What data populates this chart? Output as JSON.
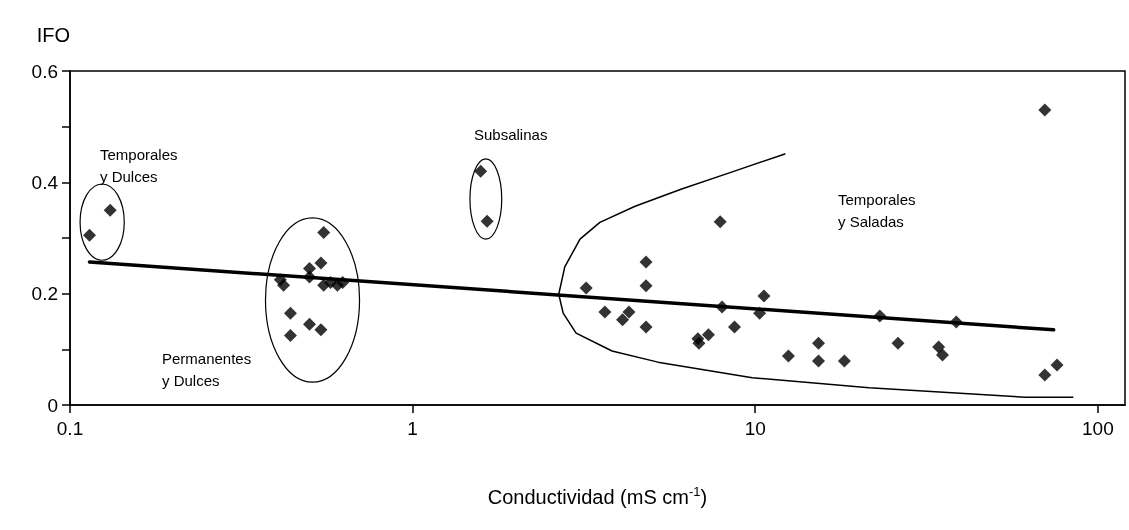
{
  "chart_data": {
    "type": "scatter",
    "xlabel": "Conductividad (mS cm$^{-1}$)",
    "ylabel": "IFO",
    "log": "x",
    "xlim": [
      0.1,
      120
    ],
    "xticks": [
      0.1,
      1,
      10,
      100
    ],
    "ylim": [
      0,
      0.6
    ],
    "yticks": [
      0,
      {
        "value": 0.1,
        "label": null
      },
      0.2,
      {
        "value": 0.3,
        "label": null
      },
      0.4,
      {
        "value": 0.5,
        "label": null
      },
      0.6
    ],
    "grid": false,
    "marker": "diamond",
    "series": [
      {
        "color": "#000000",
        "x": [
          0.114,
          0.131,
          0.411,
          0.42,
          0.44,
          0.44,
          0.5,
          0.5,
          0.5,
          0.54,
          0.54,
          0.55,
          0.55,
          0.576,
          0.603,
          0.625,
          1.58,
          1.65,
          3.21,
          3.64,
          4.1,
          4.28,
          4.8,
          4.8,
          4.8,
          6.8,
          6.85,
          7.3,
          7.9,
          8.0,
          8.7,
          10.3,
          10.6,
          12.5,
          15.3,
          15.3,
          18.2,
          23.1,
          26.1,
          34.3,
          35.2,
          38.6,
          70,
          70,
          76
        ],
        "values": [
          0.305,
          0.35,
          0.225,
          0.215,
          0.165,
          0.125,
          0.245,
          0.23,
          0.145,
          0.255,
          0.135,
          0.31,
          0.215,
          0.22,
          0.215,
          0.22,
          0.42,
          0.33,
          0.21,
          0.167,
          0.153,
          0.167,
          0.257,
          0.214,
          0.14,
          0.119,
          0.111,
          0.126,
          0.329,
          0.176,
          0.14,
          0.165,
          0.196,
          0.088,
          0.111,
          0.079,
          0.079,
          0.16,
          0.111,
          0.104,
          0.09,
          0.149,
          0.53,
          0.054,
          0.072
        ]
      },
      {
        "type": "line",
        "color": "#000000",
        "marker": "none",
        "x": [
          0.114,
          74.3
        ],
        "values": [
          0.257,
          0.135
        ]
      },
      {
        "type": "line",
        "color": "#000000",
        "marker": "none",
        "x": [
          12.2,
          8.4,
          6.1,
          4.46,
          3.52,
          3.08,
          2.78,
          2.67,
          2.75,
          3.0,
          3.82,
          5.2,
          9.8,
          21.5,
          61.5,
          84.5
        ],
        "values": [
          0.451,
          0.417,
          0.388,
          0.357,
          0.328,
          0.298,
          0.248,
          0.199,
          0.165,
          0.129,
          0.097,
          0.077,
          0.049,
          0.031,
          0.014,
          0.014
        ]
      }
    ],
    "annotations": [
      "Temporales\ny Dulces",
      "Subsalinas",
      "Permanentes\ny Dulces",
      "Temporales\ny Saladas"
    ]
  }
}
